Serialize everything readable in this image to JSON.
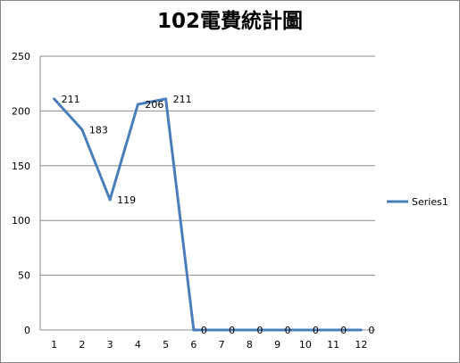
{
  "chart_data": {
    "type": "line",
    "title": "102電費統計圖",
    "xlabel": "",
    "ylabel": "",
    "categories": [
      "1",
      "2",
      "3",
      "4",
      "5",
      "6",
      "7",
      "8",
      "9",
      "10",
      "11",
      "12"
    ],
    "series": [
      {
        "name": "Series1",
        "values": [
          211,
          183,
          119,
          206,
          211,
          0,
          0,
          0,
          0,
          0,
          0,
          0
        ],
        "data_labels": [
          "211",
          "183",
          "119",
          "206",
          "211",
          "0",
          "0",
          "0",
          "0",
          "0",
          "0",
          "0"
        ],
        "color": "#4a7ebb"
      }
    ],
    "ylim": [
      0,
      250
    ],
    "yticks": [
      "0",
      "50",
      "100",
      "150",
      "200",
      "250"
    ],
    "grid": "horizontal",
    "legend_position": "right"
  }
}
